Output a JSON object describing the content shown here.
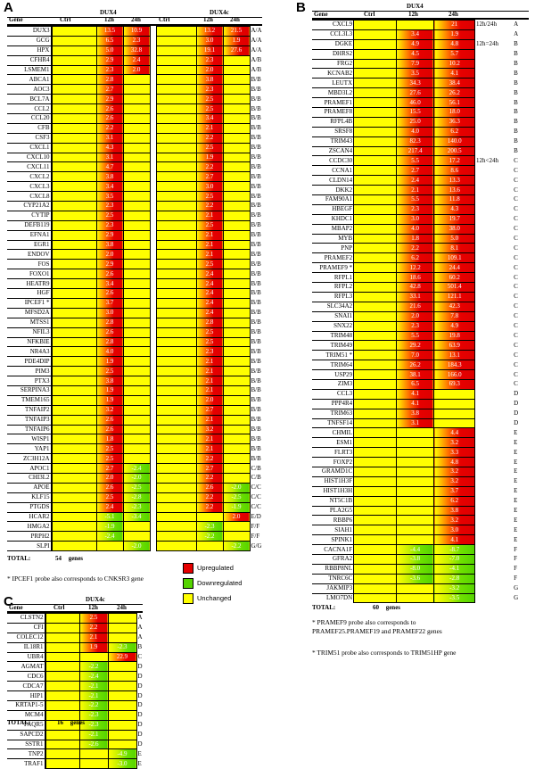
{
  "panelA": {
    "label": "A",
    "groups": [
      "DUX4",
      "DUX4c"
    ],
    "cols": {
      "gene": "Gene",
      "ctrl": "Ctrl",
      "h12": "12h",
      "h24": "24h"
    },
    "rows": [
      [
        "DUX3",
        "13.5",
        "10.9",
        "13.2",
        "21.5",
        "A/A"
      ],
      [
        "GCG",
        "6.5",
        "2.3",
        "3.0",
        "1.9",
        "A/A"
      ],
      [
        "HPX",
        "5.0",
        "32.8",
        "19.1",
        "27.6",
        "A/A"
      ],
      [
        "CFHR4",
        "2.9",
        "2.4",
        "2.3",
        "",
        "A/B"
      ],
      [
        "LSMEM1",
        "2.3",
        "2.0",
        "2.0",
        "",
        "A/B"
      ],
      [
        "ABCA1",
        "2.8",
        "",
        "3.8",
        "",
        "B/B"
      ],
      [
        "AOC3",
        "2.7",
        "",
        "2.3",
        "",
        "B/B"
      ],
      [
        "BCL7A",
        "2.9",
        "",
        "2.5",
        "",
        "B/B"
      ],
      [
        "CCL2",
        "2.6",
        "",
        "2.5",
        "",
        "B/B"
      ],
      [
        "CCL20",
        "2.6",
        "",
        "3.4",
        "",
        "B/B"
      ],
      [
        "CFB",
        "2.2",
        "",
        "2.1",
        "",
        "B/B"
      ],
      [
        "CSF3",
        "3.1",
        "",
        "2.2",
        "",
        "B/B"
      ],
      [
        "CXCL1",
        "4.3",
        "",
        "2.5",
        "",
        "B/B"
      ],
      [
        "CXCL10",
        "3.1",
        "",
        "1.9",
        "",
        "B/B"
      ],
      [
        "CXCL11",
        "4.7",
        "",
        "2.2",
        "",
        "B/B"
      ],
      [
        "CXCL2",
        "3.8",
        "",
        "2.7",
        "",
        "B/B"
      ],
      [
        "CXCL3",
        "3.4",
        "",
        "3.0",
        "",
        "B/B"
      ],
      [
        "CXCL8",
        "3.5",
        "",
        "2.5",
        "",
        "B/B"
      ],
      [
        "CYP21A2",
        "2.3",
        "",
        "2.2",
        "",
        "B/B"
      ],
      [
        "CYTIP",
        "2.5",
        "",
        "2.1",
        "",
        "B/B"
      ],
      [
        "DEFB119",
        "2.3",
        "",
        "2.5",
        "",
        "B/B"
      ],
      [
        "EFNA1",
        "2.9",
        "",
        "2.1",
        "",
        "B/B"
      ],
      [
        "EGR1",
        "3.8",
        "",
        "2.1",
        "",
        "B/B"
      ],
      [
        "ENDOV",
        "2.0",
        "",
        "2.1",
        "",
        "B/B"
      ],
      [
        "FOS",
        "2.9",
        "",
        "2.5",
        "",
        "B/B"
      ],
      [
        "FOXO1",
        "2.6",
        "",
        "2.4",
        "",
        "B/B"
      ],
      [
        "HEATR9",
        "3.4",
        "",
        "2.4",
        "",
        "B/B"
      ],
      [
        "HGF",
        "2.6",
        "",
        "2.4",
        "",
        "B/B"
      ],
      [
        "IPCEF1 *",
        "3.7",
        "",
        "2.4",
        "",
        "B/B"
      ],
      [
        "MFSD2A",
        "3.0",
        "",
        "2.4",
        "",
        "B/B"
      ],
      [
        "MTSS1",
        "2.8",
        "",
        "2.8",
        "",
        "B/B"
      ],
      [
        "NFIL3",
        "2.6",
        "",
        "2.5",
        "",
        "B/B"
      ],
      [
        "NFKBIE",
        "2.8",
        "",
        "2.5",
        "",
        "B/B"
      ],
      [
        "NR4A3",
        "4.0",
        "",
        "2.3",
        "",
        "B/B"
      ],
      [
        "PDE4DIP",
        "1.9",
        "",
        "2.1",
        "",
        "B/B"
      ],
      [
        "PIM3",
        "2.5",
        "",
        "2.1",
        "",
        "B/B"
      ],
      [
        "PTX3",
        "3.8",
        "",
        "2.1",
        "",
        "B/B"
      ],
      [
        "SERPINA3",
        "1.9",
        "",
        "2.1",
        "",
        "B/B"
      ],
      [
        "TMEM165",
        "1.9",
        "",
        "2.0",
        "",
        "B/B"
      ],
      [
        "TNFAIP2",
        "3.2",
        "",
        "2.7",
        "",
        "B/B"
      ],
      [
        "TNFAIP3",
        "2.6",
        "",
        "2.1",
        "",
        "B/B"
      ],
      [
        "TNFAIP6",
        "2.6",
        "",
        "3.2",
        "",
        "B/B"
      ],
      [
        "WISP1",
        "1.8",
        "",
        "2.1",
        "",
        "B/B"
      ],
      [
        "YAP1",
        "2.5",
        "",
        "2.1",
        "",
        "B/B"
      ],
      [
        "ZC3H12A",
        "2.5",
        "",
        "2.2",
        "",
        "B/B"
      ],
      [
        "APOC1",
        "2.7",
        "-2.4",
        "2.7",
        "",
        "C/B"
      ],
      [
        "CHI3L2",
        "2.0",
        "-2.0",
        "2.2",
        "",
        "C/B"
      ],
      [
        "APOE",
        "2.6",
        "-2.5",
        "2.6",
        "-2.0",
        "C/C"
      ],
      [
        "KLF15",
        "2.5",
        "-2.8",
        "2.2",
        "-2.5",
        "C/C"
      ],
      [
        "PTGDS",
        "2.4",
        "-2.3",
        "2.2",
        "-1.9",
        "C/C"
      ],
      [
        "HCAR2",
        "-5.1",
        "-3.4",
        "",
        "2.0",
        "E/D"
      ],
      [
        "HMGA2",
        "-1.9",
        "",
        "-2.3",
        "",
        "F/F"
      ],
      [
        "PRPH2",
        "-2.4",
        "",
        "-2.2",
        "",
        "F/F"
      ],
      [
        "SLPI",
        "",
        "-2.0",
        "",
        "-2.2",
        "G/G"
      ]
    ],
    "total_label": "TOTAL:",
    "total_value": "54",
    "total_unit": "genes",
    "footnote": "* IPCEF1 probe also corresponds to CNKSR3 gene"
  },
  "panelB": {
    "label": "B",
    "group": "DUX4",
    "cols": {
      "gene": "Gene",
      "ctrl": "Ctrl",
      "h12": "12h",
      "h24": "24h"
    },
    "rows": [
      [
        "CXCL9",
        "",
        "21",
        "12h/24h",
        "A"
      ],
      [
        "CCL3L3",
        "3.4",
        "1.9",
        "",
        "A"
      ],
      [
        "DGKE",
        "4.9",
        "4.8",
        "12h=24h",
        "B"
      ],
      [
        "DHRS2",
        "4.5",
        "5.7",
        "",
        "B"
      ],
      [
        "FRG2",
        "7.9",
        "10.2",
        "",
        "B"
      ],
      [
        "KCNAB2",
        "3.5",
        "4.1",
        "",
        "B"
      ],
      [
        "LEUTX",
        "34.3",
        "38.4",
        "",
        "B"
      ],
      [
        "MBD3L2",
        "27.6",
        "26.2",
        "",
        "B"
      ],
      [
        "PRAMEF1",
        "46.0",
        "56.1",
        "",
        "B"
      ],
      [
        "PRAMEF8",
        "15.5",
        "18.0",
        "",
        "B"
      ],
      [
        "RFPL4B",
        "25.0",
        "36.3",
        "",
        "B"
      ],
      [
        "SRSF8",
        "4.0",
        "6.2",
        "",
        "B"
      ],
      [
        "TRIM43",
        "82.3",
        "140.0",
        "",
        "B"
      ],
      [
        "ZSCAN4",
        "217.4",
        "200.5",
        "",
        "B"
      ],
      [
        "CCDC30",
        "5.5",
        "17.2",
        "12h<24h",
        "C"
      ],
      [
        "CCNA1",
        "2.7",
        "8.6",
        "",
        "C"
      ],
      [
        "CLDN14",
        "2.4",
        "13.3",
        "",
        "C"
      ],
      [
        "DKK2",
        "2.1",
        "13.6",
        "",
        "C"
      ],
      [
        "FAM90A1",
        "5.5",
        "11.8",
        "",
        "C"
      ],
      [
        "HBEGF",
        "2.3",
        "4.3",
        "",
        "C"
      ],
      [
        "KHDC1",
        "3.0",
        "19.7",
        "",
        "C"
      ],
      [
        "MBAP2",
        "4.0",
        "38.0",
        "",
        "C"
      ],
      [
        "MYB",
        "1.8",
        "5.0",
        "",
        "C"
      ],
      [
        "PNP",
        "2.2",
        "8.1",
        "",
        "C"
      ],
      [
        "PRAMEF2",
        "6.2",
        "109.1",
        "",
        "C"
      ],
      [
        "PRAMEF9 *",
        "12.2",
        "24.4",
        "",
        "C"
      ],
      [
        "RFPL1",
        "18.6",
        "60.2",
        "",
        "C"
      ],
      [
        "RFPL2",
        "42.8",
        "501.4",
        "",
        "C"
      ],
      [
        "RFPL3",
        "33.1",
        "121.1",
        "",
        "C"
      ],
      [
        "SLC34A2",
        "21.6",
        "42.3",
        "",
        "C"
      ],
      [
        "SNAI1",
        "2.0",
        "7.8",
        "",
        "C"
      ],
      [
        "SNX22",
        "2.3",
        "4.9",
        "",
        "C"
      ],
      [
        "TRIM48",
        "5.5",
        "19.8",
        "",
        "C"
      ],
      [
        "TRIM49",
        "29.2",
        "63.9",
        "",
        "C"
      ],
      [
        "TRIM51 *",
        "7.0",
        "13.1",
        "",
        "C"
      ],
      [
        "TRIM64",
        "26.2",
        "184.3",
        "",
        "C"
      ],
      [
        "USP29",
        "38.1",
        "166.0",
        "",
        "C"
      ],
      [
        "ZIM3",
        "6.5",
        "69.3",
        "",
        "C"
      ],
      [
        "CCL3",
        "4.1",
        "",
        "",
        "D"
      ],
      [
        "PPP4R4",
        "4.1",
        "",
        "",
        "D"
      ],
      [
        "TRIM63",
        "3.8",
        "",
        "",
        "D"
      ],
      [
        "TNFSF14",
        "3.1",
        "",
        "",
        "D"
      ],
      [
        "CHMIL",
        "",
        "4.4",
        "",
        "E"
      ],
      [
        "ESM1",
        "",
        "3.2",
        "",
        "E"
      ],
      [
        "FLRT3",
        "",
        "3.3",
        "",
        "E"
      ],
      [
        "FOXP2",
        "",
        "4.8",
        "",
        "E"
      ],
      [
        "GRAMD1C",
        "",
        "3.2",
        "",
        "E"
      ],
      [
        "HIST1H3F",
        "",
        "3.2",
        "",
        "E"
      ],
      [
        "HIST1H3H",
        "",
        "3.7",
        "",
        "E"
      ],
      [
        "NT5C1B",
        "",
        "6.2",
        "",
        "E"
      ],
      [
        "PLA2G5",
        "",
        "3.8",
        "",
        "E"
      ],
      [
        "RBBP6",
        "",
        "3.2",
        "",
        "E"
      ],
      [
        "SIAH1",
        "",
        "3.0",
        "",
        "E"
      ],
      [
        "SPINK1",
        "",
        "4.1",
        "",
        "E"
      ],
      [
        "CACNA1F",
        "-4.4",
        "-8.7",
        "",
        "F"
      ],
      [
        "GFRA2",
        "-3.8",
        "-7.0",
        "",
        "F"
      ],
      [
        "RBBP8NL",
        "-8.0",
        "-4.1",
        "",
        "F"
      ],
      [
        "TNRC6C",
        "-3.6",
        "-2.8",
        "",
        "F"
      ],
      [
        "JAKMIP3",
        "",
        "-3.2",
        "",
        "G"
      ],
      [
        "LMO7DN",
        "",
        "-3.5",
        "",
        "G"
      ]
    ],
    "total_label": "TOTAL:",
    "total_value": "60",
    "total_unit": "genes",
    "footnotes": [
      "* PRAMEF9 probe also corresponds to PRAMEF25.PRAMEF19 and PRAMEF22 genes",
      "* TRIM51 probe also corresponds to TRIM51HP gene"
    ]
  },
  "panelC": {
    "label": "C",
    "group": "DUX4c",
    "cols": {
      "gene": "Gene",
      "ctrl": "Ctrl",
      "h12": "12h",
      "h24": "24h"
    },
    "rows": [
      [
        "CLSTN2",
        "2.5",
        "",
        "A"
      ],
      [
        "CFI",
        "2.2",
        "",
        "A"
      ],
      [
        "COLEC12",
        "2.1",
        "",
        "A"
      ],
      [
        "IL18R1",
        "1.9",
        "-2.3",
        "B"
      ],
      [
        "UBR4",
        "",
        "22.9",
        "C"
      ],
      [
        "AGMAT",
        "-2.2",
        "",
        "D"
      ],
      [
        "CDC6",
        "-2.4",
        "",
        "D"
      ],
      [
        "CDCA7",
        "-2.1",
        "",
        "D"
      ],
      [
        "HIP1",
        "-2.1",
        "",
        "D"
      ],
      [
        "KRTAP1-5",
        "-2.2",
        "",
        "D"
      ],
      [
        "MCM4",
        "-2.3",
        "",
        "D"
      ],
      [
        "PAQR5",
        "-2.3",
        "",
        "D"
      ],
      [
        "SAPCD2",
        "-2.1",
        "",
        "D"
      ],
      [
        "SSTR1",
        "-2.6",
        "",
        "D"
      ],
      [
        "TNP2",
        "",
        "-4.9",
        "E"
      ],
      [
        "TRAF1",
        "",
        "-3.0",
        "E"
      ]
    ],
    "total_label": "TOTAL:",
    "total_value": "16",
    "total_unit": "genes"
  },
  "legend": {
    "items": [
      {
        "label": "Upregulated",
        "color": "#e60000"
      },
      {
        "label": "Downregulated",
        "color": "#55d400"
      },
      {
        "label": "Unchanged",
        "color": "#ffff00"
      }
    ]
  }
}
